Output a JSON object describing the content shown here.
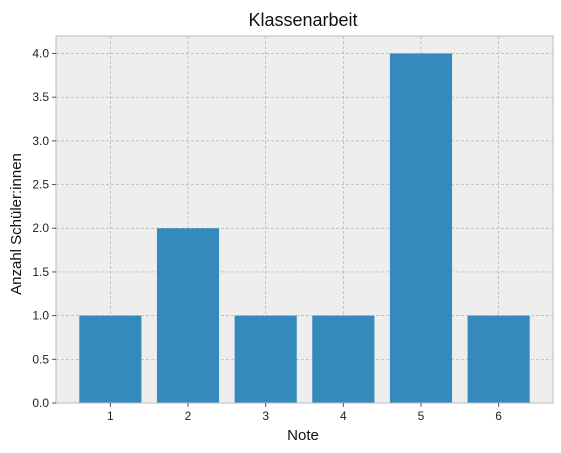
{
  "chart_data": {
    "type": "bar",
    "title": "Klassenarbeit",
    "xlabel": "Note",
    "ylabel": "Anzahl Schüler:innen",
    "categories": [
      "1",
      "2",
      "3",
      "4",
      "5",
      "6"
    ],
    "values": [
      1,
      2,
      1,
      1,
      4,
      1
    ],
    "ylim": [
      0,
      4.2
    ],
    "yticks": [
      "0.0",
      "0.5",
      "1.0",
      "1.5",
      "2.0",
      "2.5",
      "3.0",
      "3.5",
      "4.0"
    ],
    "grid": true,
    "colors": {
      "bar": "#348abd",
      "plot_background": "#eeeeee",
      "grid": "#b2b2b2",
      "frame": "#bcbcbc"
    }
  }
}
